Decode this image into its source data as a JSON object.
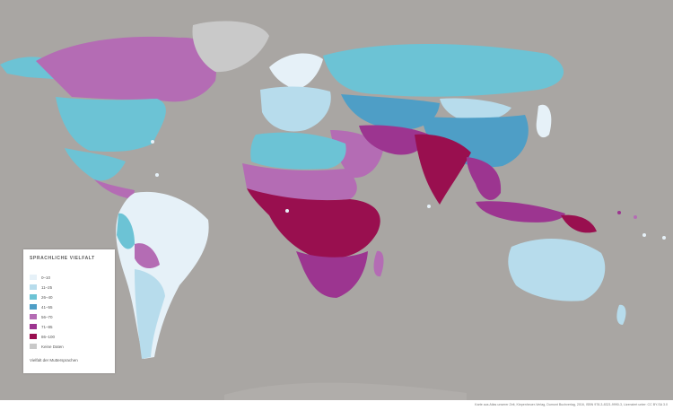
{
  "legend": {
    "title": "SPRACHLICHE VIELFALT",
    "items": [
      {
        "label": "0–10",
        "color": "#e6f1f8"
      },
      {
        "label": "11–25",
        "color": "#b7dcec"
      },
      {
        "label": "26–40",
        "color": "#6cc3d5"
      },
      {
        "label": "41–55",
        "color": "#4e9ec6"
      },
      {
        "label": "56–70",
        "color": "#b46cb4"
      },
      {
        "label": "71–85",
        "color": "#9c3590"
      },
      {
        "label": "86–100",
        "color": "#990f4f"
      },
      {
        "label": "Keine Daten",
        "color": "#c9c9c9"
      }
    ],
    "note": "Vielfalt der Muttersprachen"
  },
  "colors": {
    "ocean": "#a9a6a3",
    "no_data": "#c9c9c9"
  },
  "regions": {
    "canada": "#b46cb4",
    "usa": "#6cc3d5",
    "alaska": "#6cc3d5",
    "greenland": "#c9c9c9",
    "mexico": "#6cc3d5",
    "central_america": "#b46cb4",
    "south_america_main": "#e6f1f8",
    "west_andes": "#6cc3d5",
    "bolivia": "#b46cb4",
    "chile_argentina": "#b7dcec",
    "europe": "#b7dcec",
    "scandinavia": "#e6f1f8",
    "russia": "#6cc3d5",
    "central_asia": "#4e9ec6",
    "china": "#4e9ec6",
    "mongolia": "#b7dcec",
    "middle_east": "#b46cb4",
    "iran_pakistan": "#9c3590",
    "india": "#990f4f",
    "southeast_asia": "#9c3590",
    "japan": "#e6f1f8",
    "north_africa": "#6cc3d5",
    "sahel": "#b46cb4",
    "central_africa": "#990f4f",
    "southern_africa": "#9c3590",
    "madagascar": "#b46cb4",
    "indonesia": "#9c3590",
    "png": "#990f4f",
    "australia": "#b7dcec",
    "new_zealand": "#b7dcec",
    "antarctica": "#b0adaa"
  },
  "credit": "Karte aus Atlas unserer Zeit, Kiepenheuer-Verlag, Dumont Buchverlag, 2016, ISBN 978-3-8321-9990-3, Lizenziert unter: CC BY-SA 3.0"
}
